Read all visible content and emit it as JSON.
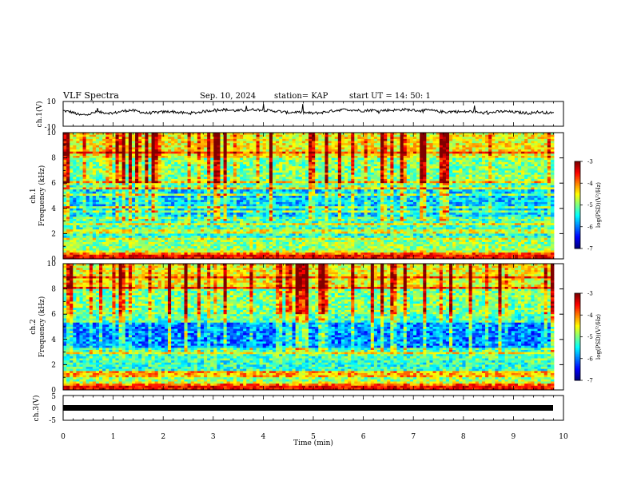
{
  "header": {
    "title": "VLF Spectra",
    "date": "Sep. 10, 2024",
    "station": "station= KAP",
    "start": "start  UT  =   14: 50: 1"
  },
  "chart_data": [
    {
      "type": "line",
      "ylabel": "ch.1(V)",
      "ylim": [
        -10,
        10
      ],
      "yticks": [
        "10",
        "-10"
      ],
      "xlim": [
        0,
        10
      ],
      "description_series": "waveform amplitude, roughly 0 to +5 V, noisy",
      "values": [
        2.5,
        1.5,
        -1,
        -0.5,
        1.5,
        1,
        0.5,
        2,
        3,
        2,
        0.5,
        1,
        1.5,
        2,
        1,
        0.5,
        1,
        2,
        3,
        3.5,
        3,
        2.5,
        3,
        3.5,
        3,
        2.5,
        2,
        1,
        1.5,
        1,
        0.5,
        1,
        2,
        3,
        3.5,
        3,
        2.5,
        3,
        2.5,
        3,
        3,
        3.5,
        3,
        2.5,
        3,
        2,
        1.5,
        2,
        1.5,
        2,
        1,
        0.5,
        1.5,
        2,
        1.5,
        1,
        0.5,
        1.5,
        1,
        0.5
      ]
    },
    {
      "type": "heatmap",
      "ylabel_top": "ch.1",
      "ylabel": "Frequency (kHz)",
      "ylim": [
        0,
        10
      ],
      "yticks": [
        "0",
        "2",
        "4",
        "6",
        "8",
        "10"
      ],
      "xlim": [
        0,
        10
      ],
      "colorbar": {
        "label": "log(PSD)(V²/Hz)",
        "range": [
          -7,
          -3
        ],
        "ticks": [
          "-3",
          "-4",
          "-5",
          "-6",
          "-7"
        ]
      }
    },
    {
      "type": "heatmap",
      "ylabel_top": "ch.2",
      "ylabel": "Frequency (kHz)",
      "ylim": [
        0,
        10
      ],
      "yticks": [
        "0",
        "2",
        "4",
        "6",
        "8",
        "10"
      ],
      "xlim": [
        0,
        10
      ],
      "colorbar": {
        "label": "log(PSD)(V²/Hz)",
        "range": [
          -7,
          -3
        ],
        "ticks": [
          "-3",
          "-4",
          "-5",
          "-6",
          "-7"
        ]
      }
    },
    {
      "type": "line",
      "ylabel": "ch.3(V)",
      "ylim": [
        -5,
        5
      ],
      "yticks": [
        "5",
        "0",
        "-5"
      ],
      "xlim": [
        0,
        10
      ],
      "xlabel": "Time  (min)",
      "xticks": [
        "0",
        "1",
        "2",
        "3",
        "4",
        "5",
        "6",
        "7",
        "8",
        "9",
        "10"
      ],
      "values": [
        0,
        0
      ]
    }
  ]
}
